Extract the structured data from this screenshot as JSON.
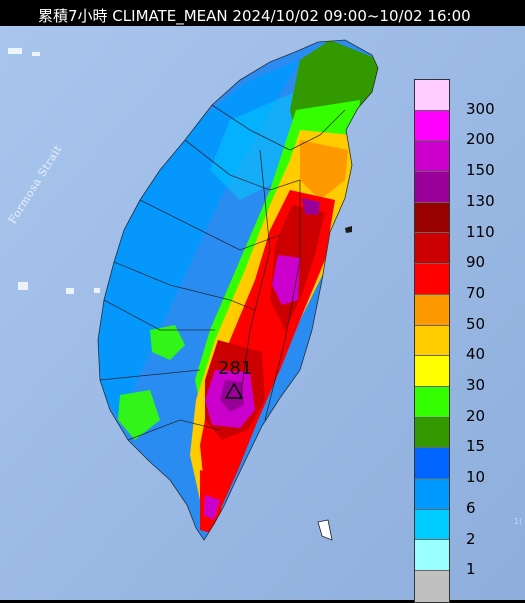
{
  "title": "累積7小時 CLIMATE_MEAN 2024/10/02 09:00~10/02 16:00",
  "strait_label": "Formosa Strait",
  "peak": {
    "value": "281",
    "marker_icon": "triangle-marker-icon"
  },
  "corner_text": "1(",
  "legend": {
    "labels": [
      "300",
      "200",
      "150",
      "130",
      "110",
      "90",
      "70",
      "50",
      "40",
      "30",
      "20",
      "15",
      "10",
      "6",
      "2",
      "1"
    ],
    "colors": [
      "#ffccff",
      "#ff00ff",
      "#cc00cc",
      "#990099",
      "#990000",
      "#cc0000",
      "#ff0000",
      "#ff9900",
      "#ffcc00",
      "#ffff00",
      "#33ff00",
      "#339900",
      "#0066ff",
      "#0099ff",
      "#00ccff",
      "#99ffff",
      "#c0c0c0"
    ]
  }
}
